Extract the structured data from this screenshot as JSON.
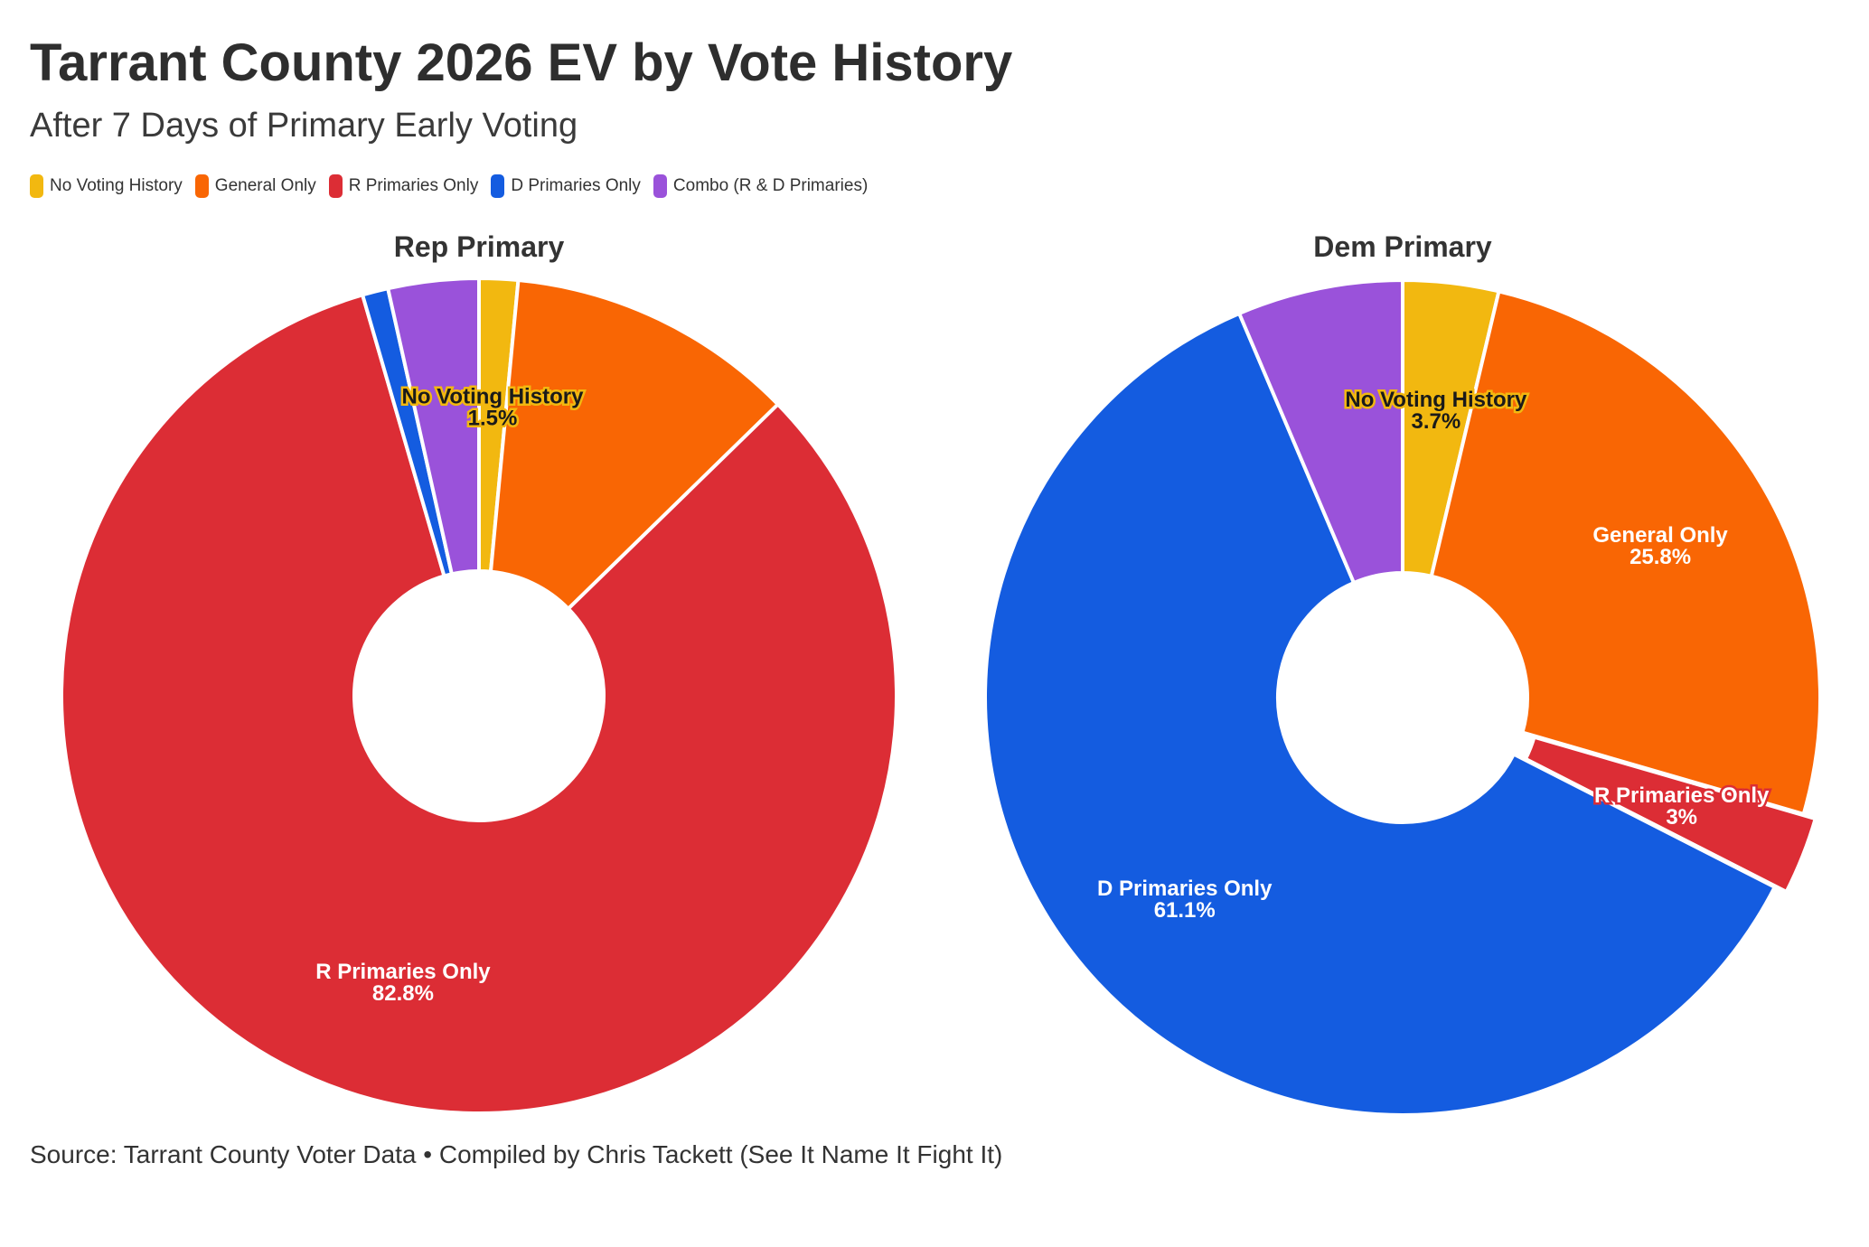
{
  "header": {
    "title": "Tarrant County 2026 EV by Vote History",
    "subtitle": "After 7 Days of Primary Early Voting"
  },
  "legend": [
    {
      "label": "No Voting History",
      "color": "#F2B810"
    },
    {
      "label": "General Only",
      "color": "#F96604"
    },
    {
      "label": "R Primaries Only",
      "color": "#DC2D35"
    },
    {
      "label": "D Primaries Only",
      "color": "#145CE0"
    },
    {
      "label": "Combo (R & D Primaries)",
      "color": "#9A52DA"
    }
  ],
  "chart_data": [
    {
      "type": "pie",
      "title": "Rep Primary",
      "categories": [
        "No Voting History",
        "General Only",
        "R Primaries Only",
        "D Primaries Only",
        "Combo (R & D Primaries)"
      ],
      "values": [
        1.5,
        11.2,
        82.8,
        1.0,
        3.5
      ],
      "labels": [
        {
          "category": "No Voting History",
          "text": "No Voting History",
          "value": "1.5%"
        },
        {
          "category": "R Primaries Only",
          "text": "R Primaries Only",
          "value": "82.8%"
        }
      ]
    },
    {
      "type": "pie",
      "title": "Dem Primary",
      "categories": [
        "No Voting History",
        "General Only",
        "R Primaries Only",
        "D Primaries Only",
        "Combo (R & D Primaries)"
      ],
      "values": [
        3.7,
        25.8,
        3.0,
        61.1,
        6.4
      ],
      "labels": [
        {
          "category": "No Voting History",
          "text": "No Voting History",
          "value": "3.7%"
        },
        {
          "category": "General Only",
          "text": "General Only",
          "value": "25.8%"
        },
        {
          "category": "R Primaries Only",
          "text": "R Primaries Only",
          "value": "3%"
        },
        {
          "category": "D Primaries Only",
          "text": "D Primaries Only",
          "value": "61.1%"
        }
      ]
    }
  ],
  "footer": {
    "source": "Source: Tarrant County Voter Data • Compiled by Chris Tackett (See It Name It Fight It)"
  }
}
